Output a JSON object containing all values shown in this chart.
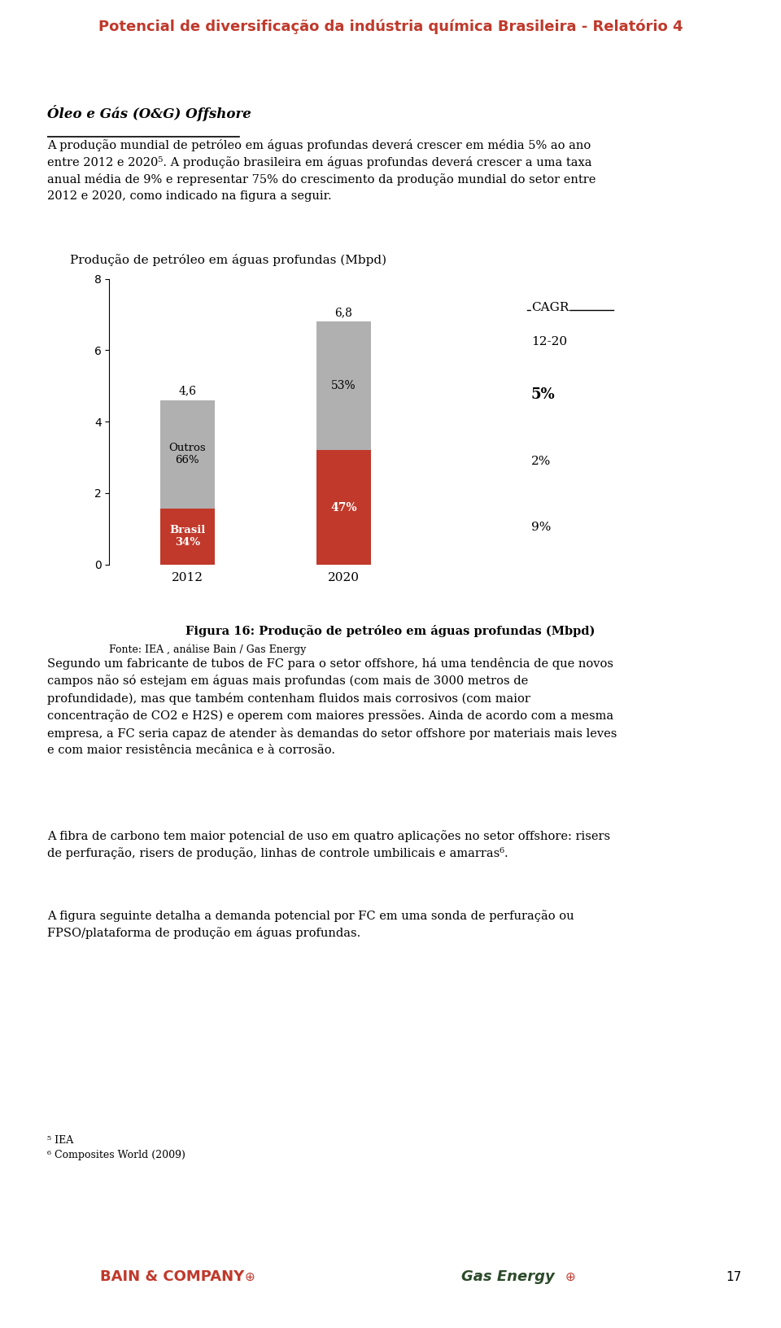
{
  "header_title": "Potencial de diversificação da indústria química Brasileira - Relatório 4",
  "header_color": "#c0392b",
  "header_line_color": "#8b1a1a",
  "section_title": "Óleo e Gás (O&G) Offshore",
  "para1": "A produção mundial de petróleo em águas profundas deverá crescer em média 5% ao ano entre 2012 e 2020µ. A produção brasileira em águas profundas deverá crescer a uma taxa anual média de 9% e representar 75% do crescimento da produção mundial do setor entre 2012 e 2020, como indicado na figura a seguir.",
  "chart_title": "Produção de petróleo em águas profundas (Mbpd)",
  "bar_2012_total": 4.6,
  "bar_2012_brasil": 1.564,
  "bar_2012_outros": 3.036,
  "bar_2020_total": 6.8,
  "bar_2020_brasil": 3.196,
  "bar_2020_outros": 3.604,
  "bar_2012_brasil_pct": "34%",
  "bar_2012_outros_pct": "66%",
  "bar_2020_brasil_pct": "47%",
  "bar_2020_outros_pct": "53%",
  "cagr_label": "CAGR",
  "cagr_period": "12-20",
  "cagr_total": "5%",
  "cagr_brasil": "9%",
  "cagr_outros": "2%",
  "fonte_text": "Fonte: IEA , análise Bain / Gas Energy",
  "color_brasil": "#c0392b",
  "color_outros": "#b0b0b0",
  "ylim": [
    0,
    8
  ],
  "yticks": [
    0,
    2,
    4,
    6,
    8
  ],
  "year_2012": "2012",
  "year_2020": "2020",
  "fig_caption": "Figura 16: Produção de petróleo em águas profundas (Mbpd)",
  "para2": "Segundo um fabricante de tubos de FC para o setor offshore, há uma tendência de que novos campos não só estejam em águas mais profundas (com mais de 3000 metros de profundidade), mas que também contenham fluidos mais corrosivos (com maior concentração de CO2 e H2S) e operem com maiores pressões. Ainda de acordo com a mesma empresa, a FC seria capaz de atender às demandas do setor offshore por materiais mais leves e com maior resistência mecânica e à corrosão.",
  "para3": "A fibra de carbono tem maior potencial de uso em quatro aplicações no setor offshore: risers de perfuração, risers de produção, linhas de controle umbilicais e amarras⁶.",
  "para4": "A figura seguinte detalha a demanda potencial por FC em uma sonda de perfuração ou FPSO/plataforma de produção em águas profundas.",
  "footnote1": "⁵ IEA",
  "footnote2": "⁶ Composites World (2009)",
  "page_number": "17",
  "bain_logo_text": "BAIN & COMPANY",
  "gas_energy_logo_text": "Gas Energy"
}
